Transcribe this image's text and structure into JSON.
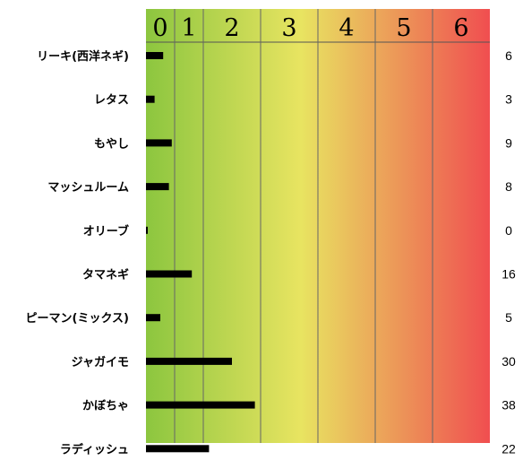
{
  "chart_data": {
    "type": "bar",
    "orientation": "horizontal",
    "categories": [
      "リーキ(西洋ネギ)",
      "レタス",
      "もやし",
      "マッシュルーム",
      "オリーブ",
      "タマネギ",
      "ピーマン(ミックス)",
      "ジャガイモ",
      "かぼちゃ",
      "ラディッシュ"
    ],
    "values": [
      6,
      3,
      9,
      8,
      0,
      16,
      5,
      30,
      38,
      22
    ],
    "value_labels": [
      "6",
      "3",
      "9",
      "8",
      "0",
      "16",
      "5",
      "30",
      "38",
      "22"
    ],
    "x_ticks": [
      "0",
      "1",
      "2",
      "3",
      "4",
      "5",
      "6"
    ],
    "x_tick_values": [
      0,
      10,
      20,
      40,
      60,
      80,
      100
    ],
    "xlim": [
      0,
      120
    ],
    "title": "",
    "xlabel": "",
    "ylabel": "",
    "grid": true,
    "legend": "none",
    "bar_color": "#000000",
    "background_gradient": [
      "#8cc63f",
      "#e8e461",
      "#f04e50"
    ]
  }
}
